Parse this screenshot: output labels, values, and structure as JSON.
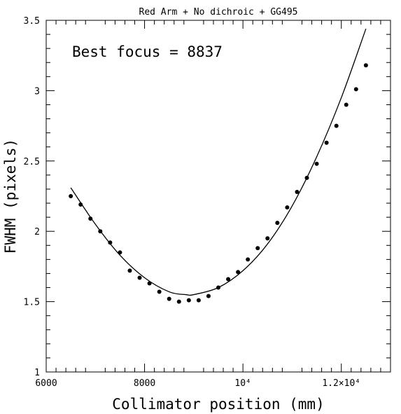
{
  "chart_data": {
    "type": "scatter",
    "title": "Red Arm + No dichroic + GG495",
    "xlabel": "Collimator position (mm)",
    "ylabel": "FWHM (pixels)",
    "annotation": "Best focus = 8837",
    "xlim": [
      6000,
      13000
    ],
    "ylim": [
      1,
      3.5
    ],
    "x_ticks": [
      6000,
      8000,
      10000,
      12000
    ],
    "x_tick_labels": [
      "6000",
      "8000",
      "10⁴",
      "1.2×10⁴"
    ],
    "y_ticks": [
      1,
      1.5,
      2,
      2.5,
      3,
      3.5
    ],
    "y_tick_labels": [
      "1",
      "1.5",
      "2",
      "2.5",
      "3",
      "3.5"
    ],
    "grid": false,
    "series": [
      {
        "kind": "points",
        "x": [
          6500,
          6700,
          6900,
          7100,
          7300,
          7500,
          7700,
          7900,
          8100,
          8300,
          8500,
          8700,
          8900,
          9100,
          9300,
          9500,
          9700,
          9900,
          10100,
          10300,
          10500,
          10700,
          10900,
          11100,
          11300,
          11500,
          11700,
          11900,
          12100,
          12300,
          12500
        ],
        "y": [
          2.25,
          2.19,
          2.09,
          2.0,
          1.92,
          1.85,
          1.72,
          1.67,
          1.63,
          1.57,
          1.52,
          1.5,
          1.51,
          1.51,
          1.54,
          1.6,
          1.66,
          1.71,
          1.8,
          1.88,
          1.95,
          2.06,
          2.17,
          2.28,
          2.38,
          2.48,
          2.63,
          2.75,
          2.9,
          3.01,
          3.18
        ]
      },
      {
        "kind": "fit-curve",
        "x": [
          6500,
          7000,
          7500,
          8000,
          8500,
          8837,
          9000,
          9500,
          10000,
          10500,
          11000,
          11500,
          12000,
          12500
        ],
        "y": [
          2.31,
          2.05,
          1.83,
          1.67,
          1.57,
          1.55,
          1.55,
          1.6,
          1.72,
          1.91,
          2.18,
          2.53,
          2.95,
          3.44
        ]
      }
    ]
  }
}
